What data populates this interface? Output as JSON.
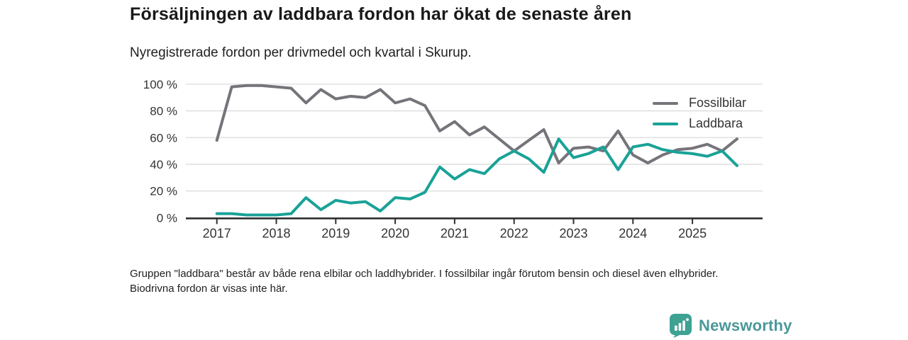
{
  "header": {
    "title": "Försäljningen av laddbara fordon har ökat de senaste åren",
    "subtitle": "Nyregistrerade fordon per drivmedel och kvartal i Skurup."
  },
  "chart_data": {
    "type": "line",
    "title": "Nyregistrerade fordon per drivmedel och kvartal i Skurup",
    "x_unit": "quarter",
    "categories": [
      "2017 Q1",
      "2017 Q2",
      "2017 Q3",
      "2017 Q4",
      "2018 Q1",
      "2018 Q2",
      "2018 Q3",
      "2018 Q4",
      "2019 Q1",
      "2019 Q2",
      "2019 Q3",
      "2019 Q4",
      "2020 Q1",
      "2020 Q2",
      "2020 Q3",
      "2020 Q4",
      "2021 Q1",
      "2021 Q2",
      "2021 Q3",
      "2021 Q4",
      "2022 Q1",
      "2022 Q2",
      "2022 Q3",
      "2022 Q4",
      "2023 Q1",
      "2023 Q2",
      "2023 Q3",
      "2023 Q4",
      "2024 Q1",
      "2024 Q2",
      "2024 Q3",
      "2024 Q4",
      "2025 Q1",
      "2025 Q2",
      "2025 Q3",
      "2025 Q4"
    ],
    "series": [
      {
        "name": "Fossilbilar",
        "color": "#76747A",
        "values": [
          58,
          98,
          99,
          99,
          98,
          97,
          86,
          96,
          89,
          91,
          90,
          96,
          86,
          89,
          84,
          65,
          72,
          62,
          68,
          59,
          50,
          58,
          66,
          41,
          52,
          53,
          50,
          65,
          47,
          41,
          47,
          51,
          52,
          55,
          50,
          59
        ]
      },
      {
        "name": "Laddbara",
        "color": "#19A297",
        "values": [
          3,
          3,
          2,
          2,
          2,
          3,
          15,
          6,
          13,
          11,
          12,
          5,
          15,
          14,
          19,
          38,
          29,
          36,
          33,
          44,
          50,
          44,
          34,
          59,
          45,
          48,
          53,
          36,
          53,
          55,
          51,
          49,
          48,
          46,
          50,
          39
        ]
      }
    ],
    "ylim": [
      0,
      100
    ],
    "y_ticks": [
      0,
      20,
      40,
      60,
      80,
      100
    ],
    "y_tick_labels": [
      "0 %",
      "20 %",
      "40 %",
      "60 %",
      "80 %",
      "100 %"
    ],
    "x_tick_labels": [
      "2017",
      "2018",
      "2019",
      "2020",
      "2021",
      "2022",
      "2023",
      "2024",
      "2025"
    ],
    "grid": "horizontal",
    "legend_position": "top-right"
  },
  "footnote": {
    "text": "Gruppen \"laddbara\" består av både rena elbilar och laddhybrider. I fossilbilar ingår förutom bensin och diesel även elhybrider. Biodrivna fordon är visas inte här."
  },
  "logo": {
    "text": "Newsworthy",
    "icon_color": "#3EA293",
    "text_color": "#4A9899"
  }
}
